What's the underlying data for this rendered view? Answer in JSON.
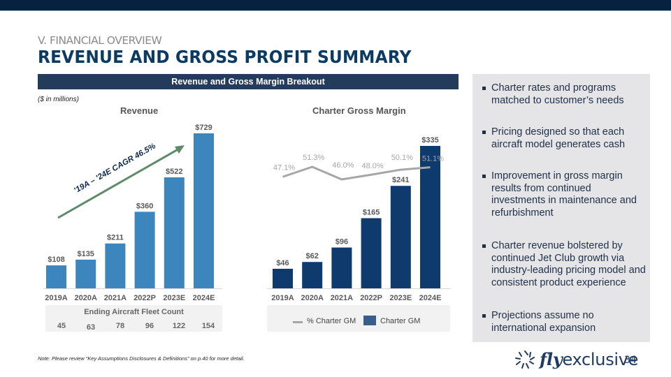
{
  "header": {
    "section": "V. FINANCIAL OVERVIEW",
    "title": "REVENUE AND GROSS PROFIT SUMMARY",
    "banner": "Revenue and Gross Margin Breakout",
    "units": "($ in millions)"
  },
  "colors": {
    "top_bar": "#06223f",
    "title": "#0b3a63",
    "banner": "#243b5c",
    "revenue_bar": "#3d85bd",
    "charter_bar": "#0e3a6e",
    "margin_line": "#a6a6a6",
    "arrow": "#5e8c6a"
  },
  "chart_data": [
    {
      "type": "bar",
      "title": "Revenue",
      "categories": [
        "2019A",
        "2020A",
        "2021A",
        "2022P",
        "2023E",
        "2024E"
      ],
      "values": [
        108,
        135,
        211,
        360,
        522,
        729
      ],
      "value_labels": [
        "$108",
        "$135",
        "$211",
        "$360",
        "$522",
        "$729"
      ],
      "xlabel": "",
      "ylabel": "",
      "ylim": [
        0,
        729
      ],
      "grid": false,
      "annotation": "'19A – '24E CAGR 46.5%",
      "fleet_table": {
        "title": "Ending Aircraft Fleet Count",
        "values": [
          "45",
          "63",
          "78",
          "96",
          "122",
          "154"
        ]
      }
    },
    {
      "type": "bar",
      "title": "Charter Gross Margin",
      "categories": [
        "2019A",
        "2020A",
        "2021A",
        "2022P",
        "2023E",
        "2024E"
      ],
      "series": [
        {
          "name": "Charter GM",
          "kind": "bar",
          "values": [
            46,
            62,
            96,
            165,
            241,
            335
          ],
          "labels": [
            "$46",
            "$62",
            "$96",
            "$165",
            "$241",
            "$335"
          ]
        },
        {
          "name": "% Charter GM",
          "kind": "line",
          "values": [
            47.1,
            51.3,
            46.0,
            48.0,
            50.1,
            51.1
          ],
          "labels": [
            "47.1%",
            "51.3%",
            "46.0%",
            "48.0%",
            "50.1%",
            "51.1%"
          ]
        }
      ],
      "xlabel": "",
      "ylabel": "",
      "ylim": [
        0,
        335
      ],
      "grid": false,
      "legend": {
        "position": "bottom",
        "entries": [
          "% Charter GM",
          "Charter GM"
        ]
      }
    }
  ],
  "sidebar": {
    "bullets": [
      "Charter rates and programs matched to customer’s needs",
      "Pricing designed so that each aircraft model generates cash",
      "Improvement in gross margin results from continued investments in maintenance and refurbishment",
      "Charter revenue bolstered by continued Jet Club growth via industry-leading pricing model and consistent product experience",
      "Projections assume no international expansion"
    ]
  },
  "footer": {
    "note": "Note: Please review “Key Assumptions Disclosures & Definitions” on p.40 for more detail.",
    "logo_fly": "fly",
    "logo_rest": "exclusive",
    "page_number": "34"
  }
}
